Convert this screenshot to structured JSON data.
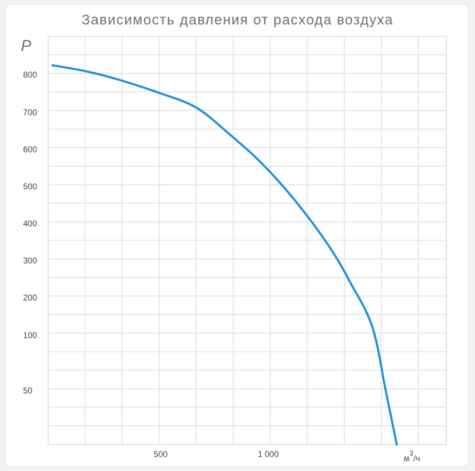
{
  "chart_data": {
    "type": "line",
    "title": "Зависимость давления от расхода воздуха",
    "ylabel": "P",
    "xlabel": "м³/ч",
    "x_unit_main": "м",
    "x_unit_sup": "3",
    "x_unit_tail": "/ч",
    "y_ticks": [
      "800",
      "700",
      "600",
      "500",
      "400",
      "300",
      "200",
      "100",
      "50"
    ],
    "x_ticks": [
      "500",
      "1 000"
    ],
    "grid": true,
    "line_color": "#1a8fd8",
    "series": [
      {
        "x": [
          0,
          150,
          300,
          480,
          650,
          800,
          950,
          1100,
          1250,
          1350,
          1450,
          1510,
          1560
        ],
        "y": [
          830,
          810,
          785,
          750,
          710,
          640,
          560,
          460,
          340,
          240,
          120,
          50,
          0
        ]
      }
    ]
  }
}
